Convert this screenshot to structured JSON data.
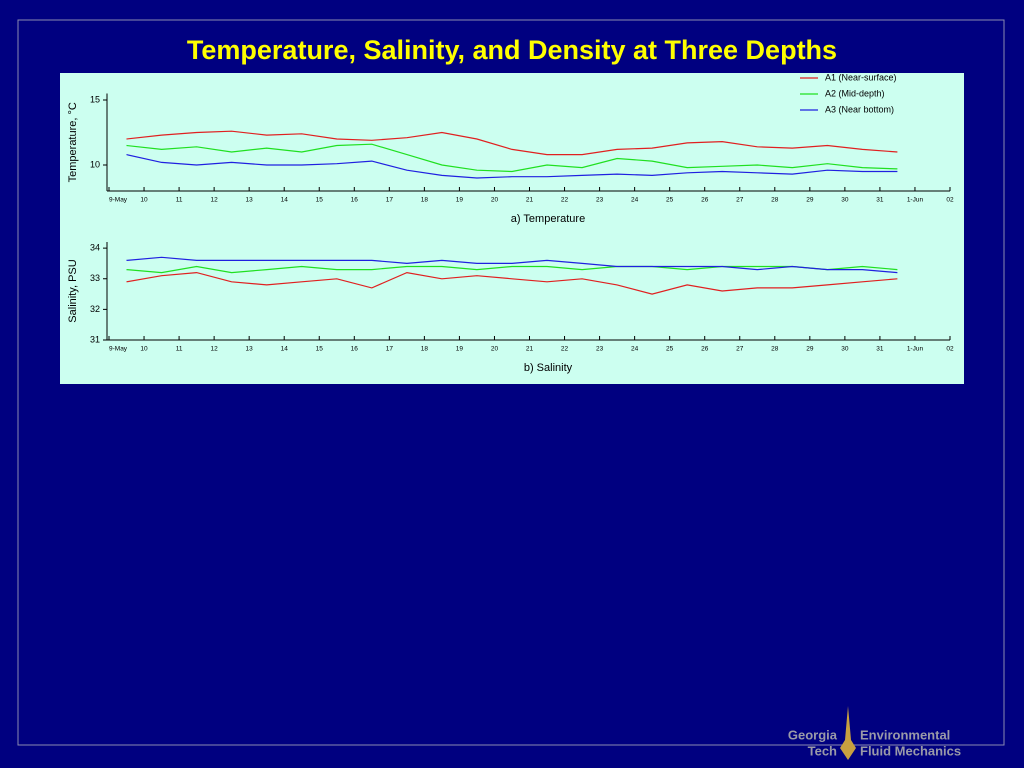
{
  "title": "Temperature, Salinity, and Density at Three Depths",
  "chart_data": [
    {
      "type": "line",
      "ylabel": "Temperature, °C",
      "caption": "a)  Temperature",
      "xlim": [
        9,
        33
      ],
      "ylim": [
        8,
        15.5
      ],
      "yticks": [
        10,
        15
      ],
      "xticks": [
        {
          "value": 9,
          "label": "9-May"
        },
        10,
        11,
        12,
        13,
        14,
        15,
        16,
        17,
        18,
        19,
        20,
        21,
        22,
        23,
        24,
        25,
        26,
        27,
        28,
        29,
        30,
        31,
        {
          "value": 32,
          "label": "1-Jun"
        },
        {
          "value": 33,
          "label": "02"
        }
      ],
      "legend": "upper right",
      "x": [
        9.5,
        10.5,
        11.5,
        12.5,
        13.5,
        14.5,
        15.5,
        16.5,
        17.5,
        18.5,
        19.5,
        20.5,
        21.5,
        22.5,
        23.5,
        24.5,
        25.5,
        26.5,
        27.5,
        28.5,
        29.5,
        30.5,
        31.5
      ],
      "series": [
        {
          "name": "A1 (Near-surface)",
          "color": "#e02020",
          "values": [
            12,
            12.3,
            12.5,
            12.6,
            12.3,
            12.4,
            12,
            11.9,
            12.1,
            12.5,
            12,
            11.2,
            10.8,
            10.8,
            11.2,
            11.3,
            11.7,
            11.8,
            11.4,
            11.3,
            11.5,
            11.2,
            11
          ]
        },
        {
          "name": "A2 (Mid-depth)",
          "color": "#20e020",
          "values": [
            11.5,
            11.2,
            11.4,
            11,
            11.3,
            11,
            11.5,
            11.6,
            10.8,
            10,
            9.6,
            9.5,
            10,
            9.8,
            10.5,
            10.3,
            9.8,
            9.9,
            10,
            9.8,
            10.1,
            9.8,
            9.7
          ]
        },
        {
          "name": "A3 (Near bottom)",
          "color": "#2020e0",
          "values": [
            10.8,
            10.2,
            10,
            10.2,
            10,
            10,
            10.1,
            10.3,
            9.6,
            9.2,
            9,
            9.1,
            9.1,
            9.2,
            9.3,
            9.2,
            9.4,
            9.5,
            9.4,
            9.3,
            9.6,
            9.5,
            9.5
          ]
        }
      ]
    },
    {
      "type": "line",
      "ylabel": "Salinity, PSU",
      "caption": "b)  Salinity",
      "xlim": [
        9,
        33
      ],
      "ylim": [
        31,
        34.2
      ],
      "yticks": [
        31,
        32,
        33,
        34
      ],
      "xticks": [
        {
          "value": 9,
          "label": "9-May"
        },
        10,
        11,
        12,
        13,
        14,
        15,
        16,
        17,
        18,
        19,
        20,
        21,
        22,
        23,
        24,
        25,
        26,
        27,
        28,
        29,
        30,
        31,
        {
          "value": 32,
          "label": "1-Jun"
        },
        {
          "value": 33,
          "label": "02"
        }
      ],
      "x": [
        9.5,
        10.5,
        11.5,
        12.5,
        13.5,
        14.5,
        15.5,
        16.5,
        17.5,
        18.5,
        19.5,
        20.5,
        21.5,
        22.5,
        23.5,
        24.5,
        25.5,
        26.5,
        27.5,
        28.5,
        29.5,
        30.5,
        31.5
      ],
      "series": [
        {
          "color": "#e02020",
          "values": [
            32.9,
            33.1,
            33.2,
            32.9,
            32.8,
            32.9,
            33,
            32.7,
            33.2,
            33,
            33.1,
            33,
            32.9,
            33,
            32.8,
            32.5,
            32.8,
            32.6,
            32.7,
            32.7,
            32.8,
            32.9,
            33
          ]
        },
        {
          "color": "#20e020",
          "values": [
            33.3,
            33.2,
            33.4,
            33.2,
            33.3,
            33.4,
            33.3,
            33.3,
            33.4,
            33.4,
            33.3,
            33.4,
            33.4,
            33.3,
            33.4,
            33.4,
            33.3,
            33.4,
            33.4,
            33.4,
            33.3,
            33.4,
            33.3
          ]
        },
        {
          "color": "#2020e0",
          "values": [
            33.6,
            33.7,
            33.6,
            33.6,
            33.6,
            33.6,
            33.6,
            33.6,
            33.5,
            33.6,
            33.5,
            33.5,
            33.6,
            33.5,
            33.4,
            33.4,
            33.4,
            33.4,
            33.3,
            33.4,
            33.3,
            33.3,
            33.2
          ]
        }
      ]
    }
  ],
  "footer": {
    "left": [
      "Georgia",
      "Tech"
    ],
    "right": [
      "Environmental",
      "Fluid Mechanics"
    ]
  }
}
